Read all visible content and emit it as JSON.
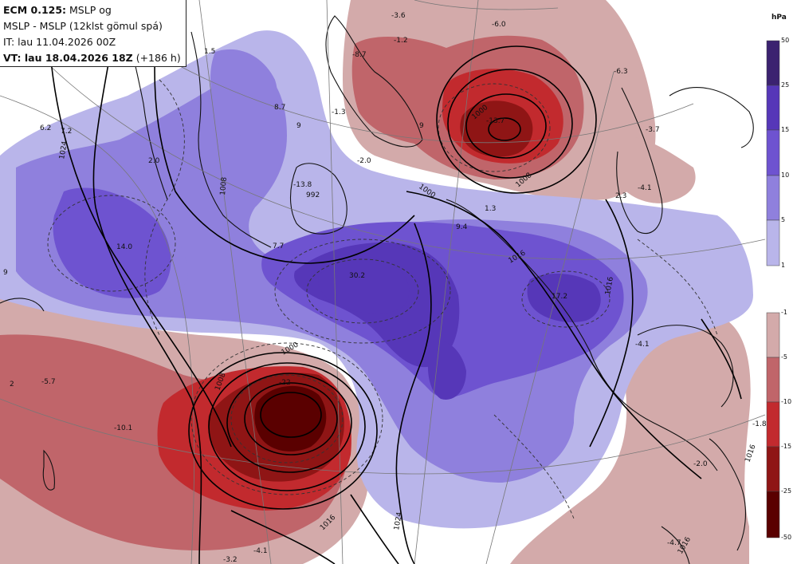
{
  "header": {
    "line1_bold": "ECM 0.125:",
    "line1_rest": " MSLP og",
    "line2": "MSLP - MSLP (12klst gömul spá)",
    "line3": "IT: lau 11.04.2026 00Z",
    "line4_bold": "VT: lau 18.04.2026 18Z",
    "line4_rest": " (+186 h)"
  },
  "colorbar": {
    "unit": "hPa",
    "positive": {
      "ticks": [
        "50",
        "25",
        "15",
        "10",
        "5",
        "1"
      ],
      "colors": [
        "#3b2270",
        "#5637b8",
        "#6e53d0",
        "#8f80dd",
        "#b9b5ea"
      ]
    },
    "negative": {
      "ticks": [
        "-1",
        "-5",
        "-10",
        "-15",
        "-25",
        "-50"
      ],
      "colors": [
        "#d3aaaa",
        "#c0656a",
        "#c22a2e",
        "#8f1515",
        "#5a0000"
      ]
    }
  },
  "isobar_labels": [
    "1000",
    "1008",
    "1016",
    "1024",
    "992",
    "1000",
    "1008",
    "1016",
    "1000",
    "1008",
    "1016",
    "1016",
    "1024",
    "1016"
  ],
  "anomaly_labels": [
    {
      "name": "max-norway",
      "text": "30.2"
    },
    {
      "name": "max-finland",
      "text": "17.2"
    },
    {
      "name": "max-greenland",
      "text": "14.0"
    },
    {
      "name": "min-atlantic",
      "text": "-22"
    },
    {
      "name": "min-iceland",
      "text": "-13.8"
    },
    {
      "name": "min-barents",
      "text": "-13.7"
    },
    {
      "name": "min-top",
      "text": "-8.7"
    },
    {
      "name": "l-36",
      "text": "-3.6"
    },
    {
      "name": "l-60",
      "text": "-6.0"
    },
    {
      "name": "l-12",
      "text": "-1.2"
    },
    {
      "name": "l-13a",
      "text": "-1.3"
    },
    {
      "name": "l-20a",
      "text": "-2.0"
    },
    {
      "name": "l-20b",
      "text": "2.0"
    },
    {
      "name": "l-15",
      "text": "1.5"
    },
    {
      "name": "l-87",
      "text": "8.7"
    },
    {
      "name": "l-62",
      "text": "6.2"
    },
    {
      "name": "l-72",
      "text": "7.2"
    },
    {
      "name": "l-9a",
      "text": "9"
    },
    {
      "name": "l-9b",
      "text": "9"
    },
    {
      "name": "l-94",
      "text": "9.4"
    },
    {
      "name": "l-13b",
      "text": "1.3"
    },
    {
      "name": "l-63",
      "text": "-6.3"
    },
    {
      "name": "l-37",
      "text": "-3.7"
    },
    {
      "name": "l-41a",
      "text": "-4.1"
    },
    {
      "name": "l-23",
      "text": "2.3"
    },
    {
      "name": "l-41b",
      "text": "-4.1"
    },
    {
      "name": "l-18",
      "text": "-1.8"
    },
    {
      "name": "l-20c",
      "text": "-2.0"
    },
    {
      "name": "l-57",
      "text": "-5.7"
    },
    {
      "name": "l-101",
      "text": "-10.1"
    },
    {
      "name": "l-32",
      "text": "-3.2"
    },
    {
      "name": "l-41c",
      "text": "-4.1"
    },
    {
      "name": "l-47",
      "text": "-4.7"
    },
    {
      "name": "l-77",
      "text": "7.7"
    },
    {
      "name": "l-2",
      "text": "2"
    },
    {
      "name": "l-9c",
      "text": "9"
    }
  ]
}
